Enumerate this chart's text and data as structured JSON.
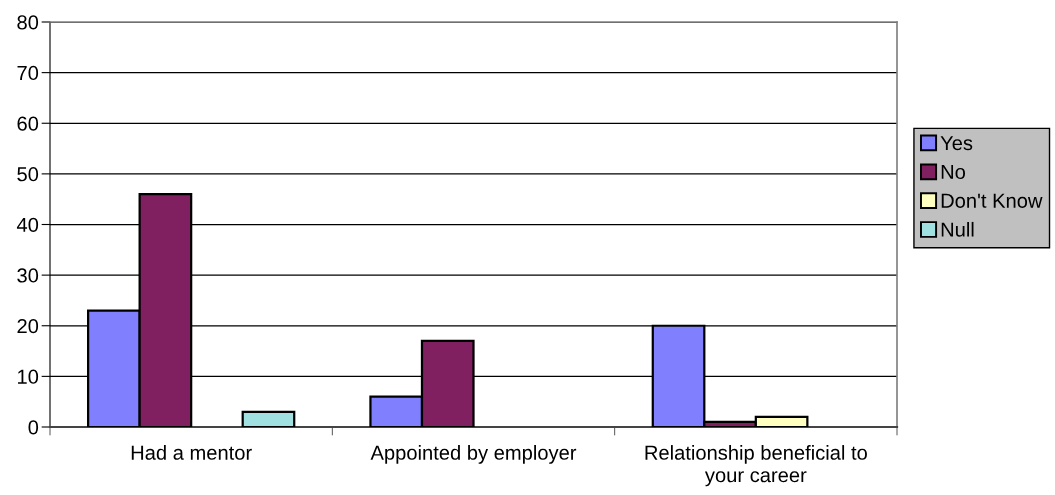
{
  "chart_data": {
    "type": "bar",
    "categories": [
      "Had a mentor",
      "Appointed by employer",
      "Relationship beneficial to your career"
    ],
    "series": [
      {
        "name": "Yes",
        "color": "#8080ff",
        "values": [
          23,
          6,
          20
        ]
      },
      {
        "name": "No",
        "color": "#802060",
        "values": [
          46,
          17,
          1
        ]
      },
      {
        "name": "Don't Know",
        "color": "#ffffc0",
        "values": [
          null,
          null,
          2
        ]
      },
      {
        "name": "Null",
        "color": "#a0e0e0",
        "values": [
          3,
          null,
          null
        ]
      }
    ],
    "ylim": [
      0,
      80
    ],
    "yticks": [
      0,
      10,
      20,
      30,
      40,
      50,
      60,
      70,
      80
    ],
    "grid": "y",
    "legend": "right"
  }
}
